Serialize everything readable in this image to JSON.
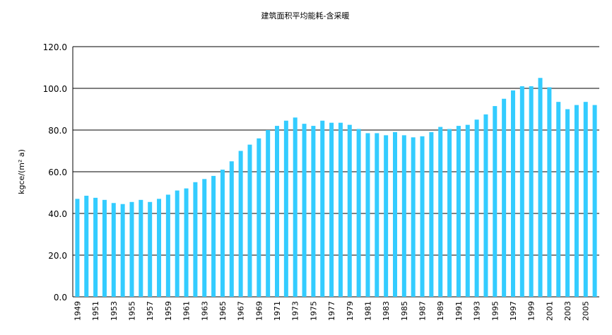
{
  "chart_data": {
    "type": "bar",
    "title": "建筑面积平均能耗-含采暖",
    "y_label": "kgce/(m² a)",
    "categories": [
      "1949",
      null,
      "1951",
      null,
      "1953",
      null,
      "1955",
      null,
      "1957",
      null,
      "1959",
      null,
      "1961",
      null,
      "1963",
      null,
      "1965",
      null,
      "1967",
      null,
      "1969",
      null,
      "1971",
      null,
      "1973",
      null,
      "1975",
      null,
      "1977",
      null,
      "1979",
      null,
      "1981",
      null,
      "1983",
      null,
      "1985",
      null,
      "1987",
      null,
      "1989",
      null,
      "1991",
      null,
      "1993",
      null,
      "1995",
      null,
      "1997",
      null,
      "1999",
      null,
      "2001",
      null,
      "2003",
      null,
      "2005",
      null
    ],
    "values": [
      47,
      48.5,
      47.5,
      46.5,
      45,
      44.5,
      45.5,
      46.5,
      45.5,
      47,
      49,
      51,
      52,
      55,
      56.5,
      58,
      61,
      65,
      70,
      73,
      76,
      80,
      82,
      84.5,
      86,
      83,
      82,
      84.5,
      83.5,
      83.5,
      82.5,
      80.5,
      78.5,
      78.5,
      77.5,
      79,
      77.5,
      76.5,
      77,
      79,
      81.5,
      80.5,
      82,
      82.5,
      85,
      87.5,
      91.5,
      95,
      99,
      101,
      101,
      105,
      100.5,
      93.5,
      90,
      92,
      93.5,
      92
    ],
    "color": "#33ccff",
    "ylim": [
      0,
      120
    ],
    "yticks": [
      {
        "value": 0,
        "label": "0.0"
      },
      {
        "value": 20,
        "label": "20.0"
      },
      {
        "value": 40,
        "label": "40.0"
      },
      {
        "value": 60,
        "label": "60.0"
      },
      {
        "value": 80,
        "label": "80.0"
      },
      {
        "value": 100,
        "label": "100.0"
      },
      {
        "value": 120,
        "label": "120.0"
      }
    ],
    "grid": true
  }
}
